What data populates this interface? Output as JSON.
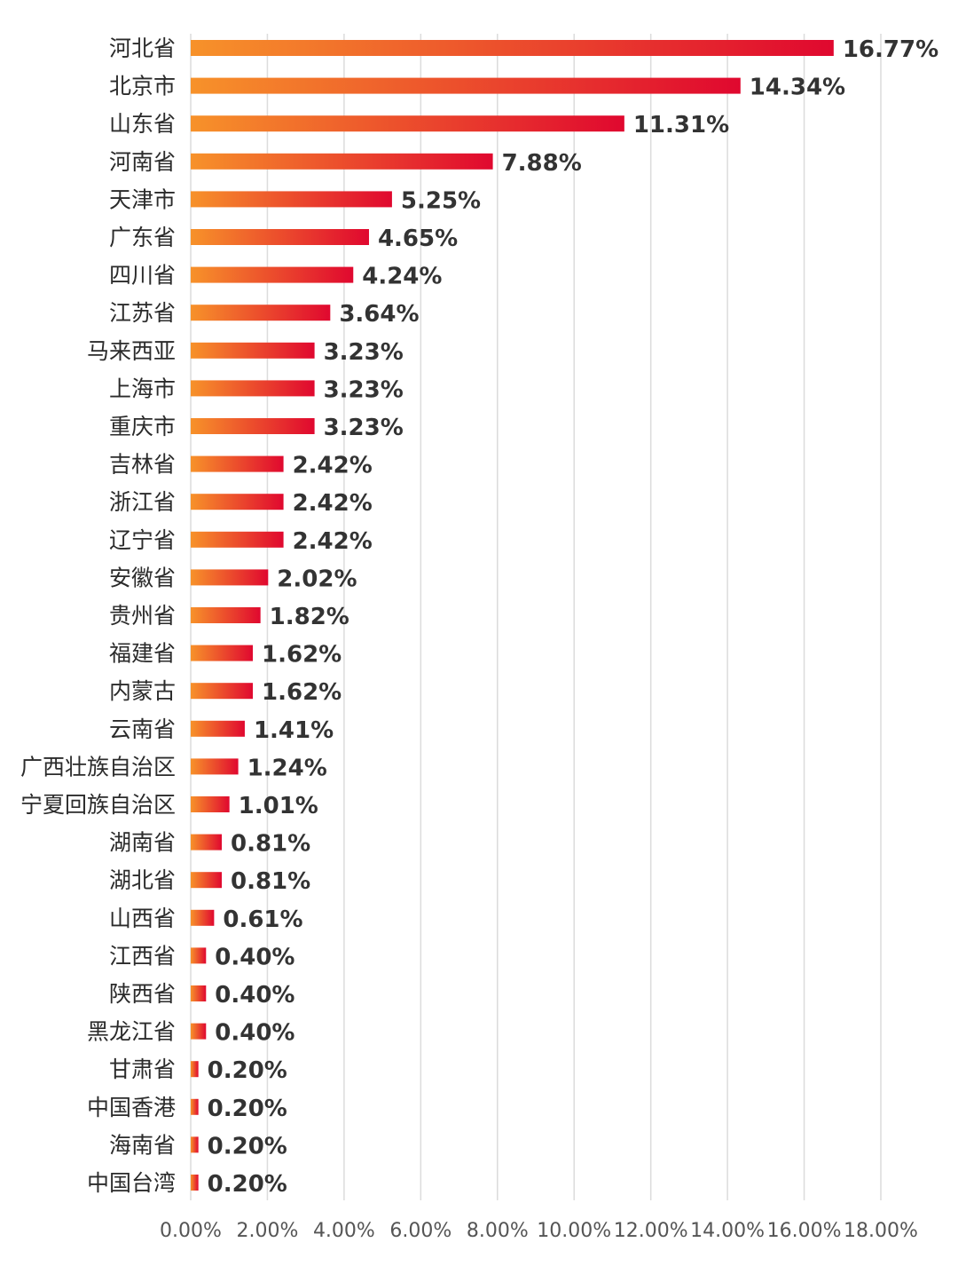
{
  "chart_data": {
    "type": "bar",
    "orientation": "horizontal",
    "categories": [
      "河北省",
      "北京市",
      "山东省",
      "河南省",
      "天津市",
      "广东省",
      "四川省",
      "江苏省",
      "马来西亚",
      "上海市",
      "重庆市",
      "吉林省",
      "浙江省",
      "辽宁省",
      "安徽省",
      "贵州省",
      "福建省",
      "内蒙古",
      "云南省",
      "广西壮族自治区",
      "宁夏回族自治区",
      "湖南省",
      "湖北省",
      "山西省",
      "江西省",
      "陕西省",
      "黑龙江省",
      "甘肃省",
      "中国香港",
      "海南省",
      "中国台湾"
    ],
    "values": [
      16.77,
      14.34,
      11.31,
      7.88,
      5.25,
      4.65,
      4.24,
      3.64,
      3.23,
      3.23,
      3.23,
      2.42,
      2.42,
      2.42,
      2.02,
      1.82,
      1.62,
      1.62,
      1.41,
      1.24,
      1.01,
      0.81,
      0.81,
      0.61,
      0.4,
      0.4,
      0.4,
      0.2,
      0.2,
      0.2,
      0.2
    ],
    "value_labels": [
      "16.77%",
      "14.34%",
      "11.31%",
      "7.88%",
      "5.25%",
      "4.65%",
      "4.24%",
      "3.64%",
      "3.23%",
      "3.23%",
      "3.23%",
      "2.42%",
      "2.42%",
      "2.42%",
      "2.02%",
      "1.82%",
      "1.62%",
      "1.62%",
      "1.41%",
      "1.24%",
      "1.01%",
      "0.81%",
      "0.81%",
      "0.61%",
      "0.40%",
      "0.40%",
      "0.40%",
      "0.20%",
      "0.20%",
      "0.20%",
      "0.20%"
    ],
    "xlim": [
      0,
      18
    ],
    "x_ticks": [
      0,
      2,
      4,
      6,
      8,
      10,
      12,
      14,
      16,
      18
    ],
    "x_tick_labels": [
      "0.00%",
      "2.00%",
      "4.00%",
      "6.00%",
      "8.00%",
      "10.00%",
      "12.00%",
      "14.00%",
      "16.00%",
      "18.00%"
    ],
    "grid": true,
    "legend": "none",
    "title": "",
    "xlabel": "",
    "ylabel": "",
    "colors": {
      "bar_start": "#f7922a",
      "bar_end": "#e0082f",
      "grid": "#dcdcdc",
      "label": "#333333"
    }
  }
}
